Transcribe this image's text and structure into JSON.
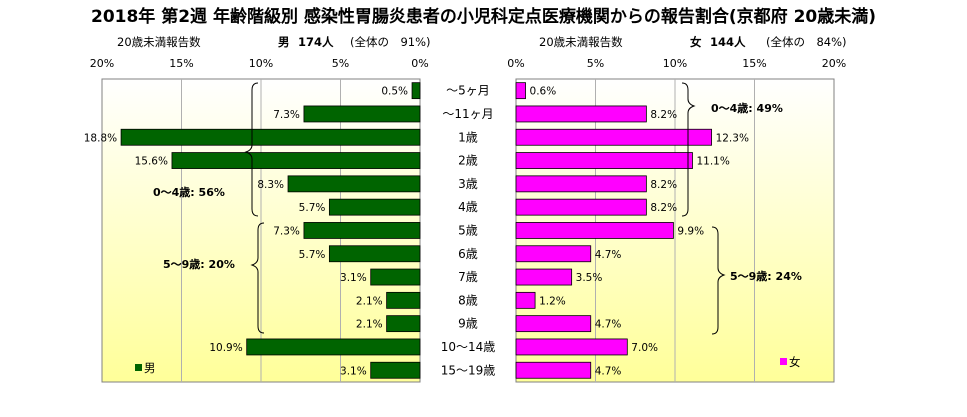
{
  "title": "2018年 第2週 年齢階級別 感染性胃腸炎患者の小児科定点医療機関からの報告割合(京都府 20歳未満)",
  "male_header": {
    "label": "20歳未満報告数",
    "sex": "男",
    "count": "174人",
    "share": "(全体の　91%)"
  },
  "female_header": {
    "label": "20歳未満報告数",
    "sex": "女",
    "count": "144人",
    "share": "(全体の　84%)"
  },
  "colors": {
    "male": "#006400",
    "female": "#ff00ff",
    "plot_bg_top": "#ffffff",
    "plot_bg_bottom": "#ffff99"
  },
  "chart_data": [
    {
      "type": "bar",
      "orientation": "horizontal",
      "name": "男",
      "categories": [
        "～5ヶ月",
        "～11ヶ月",
        "1歳",
        "2歳",
        "3歳",
        "4歳",
        "5歳",
        "6歳",
        "7歳",
        "8歳",
        "9歳",
        "10～14歳",
        "15～19歳"
      ],
      "values": [
        0.5,
        7.3,
        18.8,
        15.6,
        8.3,
        5.7,
        7.3,
        5.7,
        3.1,
        2.1,
        2.1,
        10.9,
        3.1
      ],
      "value_labels": [
        "0.5%",
        "7.3%",
        "18.8%",
        "15.6%",
        "8.3%",
        "5.7%",
        "7.3%",
        "5.7%",
        "3.1%",
        "2.1%",
        "2.1%",
        "10.9%",
        "3.1%"
      ],
      "xlim": [
        0,
        20
      ],
      "x_ticks": [
        "20%",
        "15%",
        "10%",
        "5%",
        "0%"
      ],
      "x_reversed": true,
      "legend": "男",
      "legend_position": "bottom-left",
      "annotations": [
        "0～4歳: 56%",
        "5～9歳: 20%"
      ]
    },
    {
      "type": "bar",
      "orientation": "horizontal",
      "name": "女",
      "categories": [
        "～5ヶ月",
        "～11ヶ月",
        "1歳",
        "2歳",
        "3歳",
        "4歳",
        "5歳",
        "6歳",
        "7歳",
        "8歳",
        "9歳",
        "10～14歳",
        "15～19歳"
      ],
      "values": [
        0.6,
        8.2,
        12.3,
        11.1,
        8.2,
        8.2,
        9.9,
        4.7,
        3.5,
        1.2,
        4.7,
        7.0,
        4.7
      ],
      "value_labels": [
        "0.6%",
        "8.2%",
        "12.3%",
        "11.1%",
        "8.2%",
        "8.2%",
        "9.9%",
        "4.7%",
        "3.5%",
        "1.2%",
        "4.7%",
        "7.0%",
        "4.7%"
      ],
      "xlim": [
        0,
        20
      ],
      "x_ticks": [
        "0%",
        "5%",
        "10%",
        "15%",
        "20%"
      ],
      "legend": "女",
      "legend_position": "bottom-right",
      "annotations": [
        "0～4歳: 49%",
        "5～9歳: 24%"
      ]
    }
  ]
}
